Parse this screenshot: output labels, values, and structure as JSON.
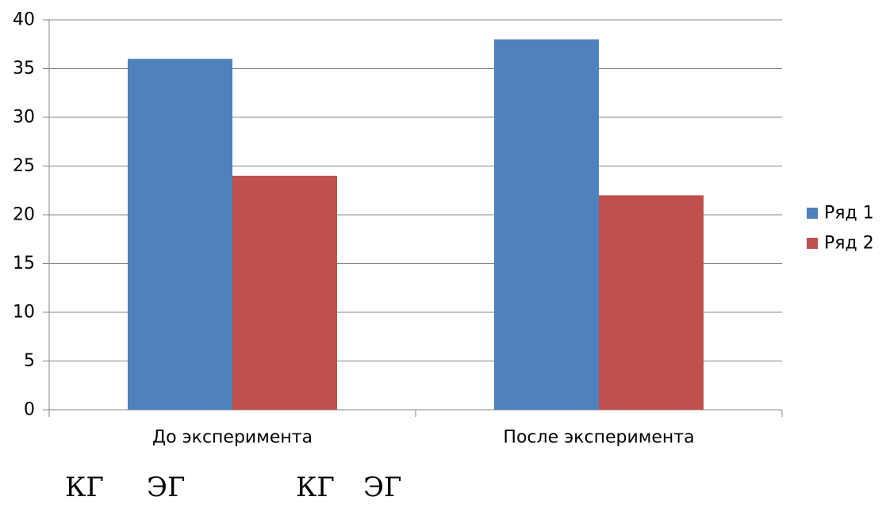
{
  "chart_data": {
    "type": "bar",
    "categories": [
      "До эксперимента",
      "После эксперимента"
    ],
    "series": [
      {
        "name": "Ряд 1",
        "values": [
          36,
          38
        ],
        "color": "#4F81BD"
      },
      {
        "name": "Ряд 2",
        "values": [
          24,
          22
        ],
        "color": "#C0504D"
      }
    ],
    "ylim": [
      0,
      40
    ],
    "yticks": [
      0,
      5,
      10,
      15,
      20,
      25,
      30,
      35,
      40
    ],
    "grid": true,
    "legend_position": "right",
    "title": "",
    "xlabel": "",
    "ylabel": ""
  },
  "annotations": [
    "КГ",
    "ЭГ",
    "КГ",
    "ЭГ"
  ]
}
